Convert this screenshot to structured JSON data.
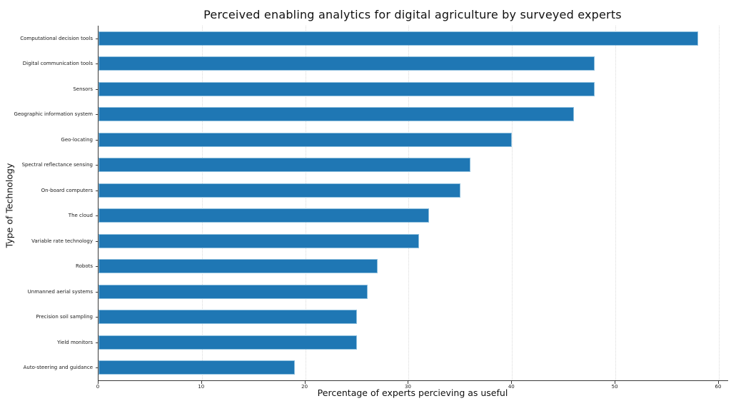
{
  "chart_data": {
    "type": "bar",
    "orientation": "horizontal",
    "title": "Perceived enabling analytics for digital agriculture by surveyed experts",
    "xlabel": "Percentage of experts percieving as useful",
    "ylabel": "Type of Technology",
    "categories": [
      "Computational decision tools",
      "Digital communication tools",
      "Sensors",
      "Geographic information system",
      "Geo-locating",
      "Spectral reflectance sensing",
      "On-board computers",
      "The cloud",
      "Variable rate technology",
      "Robots",
      "Unmanned aerial systems",
      "Precision soil sampling",
      "Yield monitors",
      "Auto-steering and guidance"
    ],
    "values": [
      58,
      48,
      48,
      46,
      40,
      36,
      35,
      32,
      31,
      27,
      26,
      25,
      25,
      19
    ],
    "xticks": [
      0,
      10,
      20,
      30,
      40,
      50,
      60
    ],
    "xlim": [
      0,
      60.9
    ],
    "grid": {
      "axis": "x",
      "style": "dotted",
      "color": "#d9d9d9"
    },
    "bar_color": "#1f77b4",
    "bar_edge_color": "#8fc0de",
    "background_color": "#ffffff"
  }
}
